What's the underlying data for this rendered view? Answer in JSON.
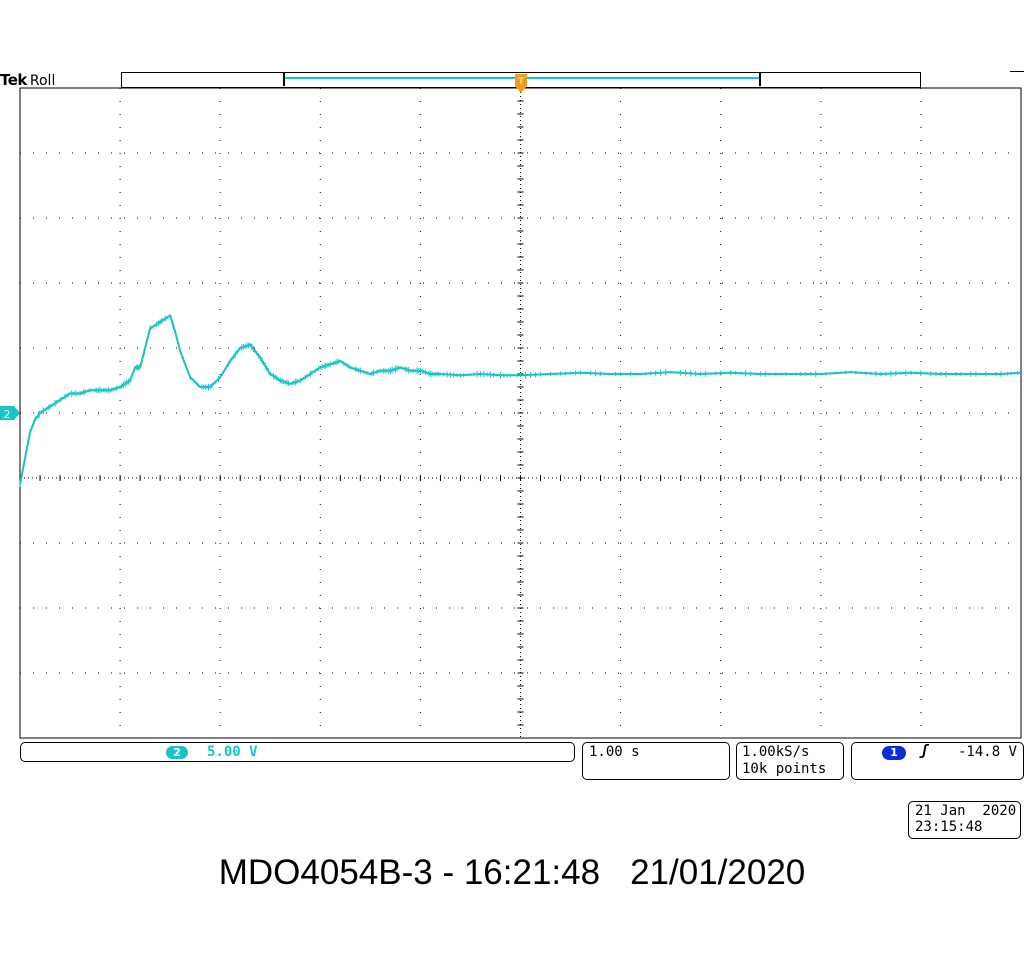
{
  "header": {
    "brand": "Tek",
    "mode": "Roll",
    "trigger_marker": "T"
  },
  "channel": {
    "number": "2",
    "scale": "5.00 V",
    "color": "#19c3c6",
    "ground_marker": "2"
  },
  "timebase": {
    "scale": "1.00 s"
  },
  "acquisition": {
    "sample_rate": "1.00kS/s",
    "record_length": "10k points"
  },
  "trigger": {
    "source": "1",
    "slope": "ʃ",
    "level": "-14.8 V",
    "color": "#0a2fd6"
  },
  "datetime": {
    "date": "21 Jan  2020",
    "time": "23:15:48"
  },
  "footer": {
    "instrument": "MDO4054B-3 - 16:21:48",
    "date": "21/01/2020"
  },
  "chart_data": {
    "type": "line",
    "xlabel": "",
    "ylabel": "",
    "xlim": [
      -5,
      5
    ],
    "ylim": [
      -4,
      6
    ],
    "x_unit_per_div": "1.00 s",
    "y_unit_per_div": "5.00 V",
    "grid": true,
    "series": [
      {
        "channel": "2",
        "x": [
          -5.0,
          -4.95,
          -4.9,
          -4.85,
          -4.8,
          -4.7,
          -4.6,
          -4.5,
          -4.4,
          -4.3,
          -4.2,
          -4.1,
          -4.0,
          -3.9,
          -3.85,
          -3.8,
          -3.75,
          -3.7,
          -3.6,
          -3.5,
          -3.45,
          -3.4,
          -3.3,
          -3.2,
          -3.1,
          -3.0,
          -2.9,
          -2.8,
          -2.7,
          -2.6,
          -2.5,
          -2.4,
          -2.3,
          -2.2,
          -2.1,
          -2.0,
          -1.9,
          -1.8,
          -1.7,
          -1.6,
          -1.5,
          -1.4,
          -1.3,
          -1.2,
          -1.1,
          -1.0,
          -0.9,
          -0.8,
          -0.6,
          -0.4,
          -0.2,
          0.0,
          0.3,
          0.6,
          0.9,
          1.2,
          1.5,
          1.8,
          2.1,
          2.4,
          2.7,
          3.0,
          3.3,
          3.6,
          3.9,
          4.2,
          4.5,
          4.8,
          5.0
        ],
        "y": [
          -0.1,
          0.3,
          0.7,
          0.9,
          1.0,
          1.1,
          1.2,
          1.3,
          1.3,
          1.35,
          1.35,
          1.35,
          1.4,
          1.5,
          1.7,
          1.7,
          2.0,
          2.3,
          2.4,
          2.5,
          2.25,
          1.95,
          1.55,
          1.4,
          1.4,
          1.55,
          1.8,
          2.0,
          2.05,
          1.85,
          1.6,
          1.5,
          1.45,
          1.5,
          1.6,
          1.7,
          1.75,
          1.8,
          1.7,
          1.65,
          1.6,
          1.65,
          1.65,
          1.7,
          1.65,
          1.65,
          1.6,
          1.6,
          1.58,
          1.6,
          1.58,
          1.58,
          1.6,
          1.62,
          1.6,
          1.6,
          1.63,
          1.6,
          1.62,
          1.6,
          1.6,
          1.6,
          1.63,
          1.6,
          1.62,
          1.6,
          1.6,
          1.6,
          1.62
        ]
      }
    ]
  }
}
